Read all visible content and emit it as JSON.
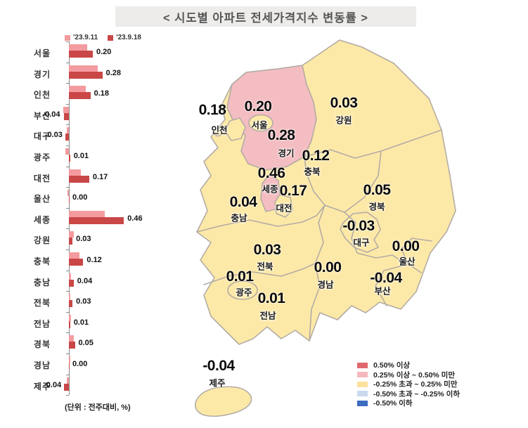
{
  "title": "< 시도별 아파트 전세가격지수 변동률 >",
  "chart_data": {
    "type": "bar",
    "orientation": "horizontal",
    "title": "시도별 아파트 전세가격지수 변동률",
    "unit_note": "(단위 : 전주대비, %)",
    "xlim": [
      -0.1,
      0.5
    ],
    "categories": [
      "서울",
      "경기",
      "인천",
      "부산",
      "대구",
      "광주",
      "대전",
      "울산",
      "세종",
      "강원",
      "충북",
      "충남",
      "전북",
      "전남",
      "경북",
      "경남",
      "제주"
    ],
    "series": [
      {
        "name": "'23.9.11",
        "color": "#F49B9F",
        "values": [
          0.15,
          0.24,
          0.14,
          -0.05,
          -0.02,
          -0.03,
          0.1,
          -0.01,
          0.3,
          0.04,
          0.09,
          0.02,
          0.01,
          0.02,
          0.04,
          0.01,
          -0.02
        ]
      },
      {
        "name": "'23.9.18",
        "color": "#C94747",
        "values": [
          0.2,
          0.28,
          0.18,
          -0.04,
          -0.03,
          0.01,
          0.17,
          0.0,
          0.46,
          0.03,
          0.12,
          0.04,
          0.03,
          0.01,
          0.05,
          0.0,
          -0.04
        ]
      }
    ],
    "value_labels_from": "'23.9.18"
  },
  "map": {
    "border_color": "#B3ACA5",
    "palette": [
      "#E0696E",
      "#F4BDC2",
      "#FDE9A7",
      "#C9D9EE",
      "#3B6CC0"
    ],
    "regions": [
      {
        "id": "incheon",
        "name": "인천",
        "value": 0.18
      },
      {
        "id": "seoul",
        "name": "서울",
        "value": 0.2
      },
      {
        "id": "gyeonggi",
        "name": "경기",
        "value": 0.28
      },
      {
        "id": "gangwon",
        "name": "강원",
        "value": 0.03
      },
      {
        "id": "chungbuk",
        "name": "충북",
        "value": 0.12
      },
      {
        "id": "sejong",
        "name": "세종",
        "value": 0.46
      },
      {
        "id": "daejeon",
        "name": "대전",
        "value": 0.17
      },
      {
        "id": "chungnam",
        "name": "충남",
        "value": 0.04
      },
      {
        "id": "gyeongbuk",
        "name": "경북",
        "value": 0.05
      },
      {
        "id": "daegu",
        "name": "대구",
        "value": -0.03
      },
      {
        "id": "ulsan",
        "name": "울산",
        "value": 0.0
      },
      {
        "id": "jeonbuk",
        "name": "전북",
        "value": 0.03
      },
      {
        "id": "gwangju",
        "name": "광주",
        "value": 0.01
      },
      {
        "id": "gyeongnam",
        "name": "경남",
        "value": 0.0
      },
      {
        "id": "busan",
        "name": "부산",
        "value": -0.04
      },
      {
        "id": "jeonnam",
        "name": "전남",
        "value": 0.01
      },
      {
        "id": "jeju",
        "name": "제주",
        "value": -0.04
      }
    ]
  },
  "legend": {
    "items": [
      {
        "label": "0.50% 이상",
        "color": "#E0696E"
      },
      {
        "label": "0.25% 이상 ~ 0.50% 미만",
        "color": "#F5B9BE"
      },
      {
        "label": "-0.25% 초과 ~ 0.25% 미만",
        "color": "#FBE29D"
      },
      {
        "label": "-0.50% 초과 ~ -0.25% 이하",
        "color": "#C9D9EE"
      },
      {
        "label": "-0.50% 이하",
        "color": "#3B6CC0"
      }
    ]
  }
}
